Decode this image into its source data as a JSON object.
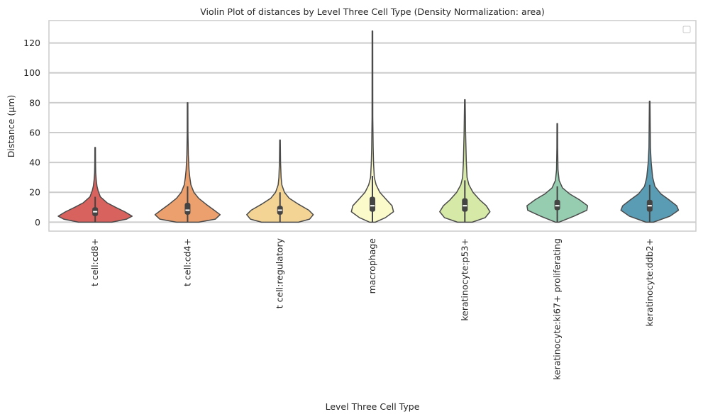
{
  "chart_data": {
    "type": "violin",
    "title": "Violin Plot of distances by Level Three Cell Type (Density Normalization: area)",
    "xlabel": "Level Three Cell Type",
    "ylabel": "Distance (µm)",
    "ylim": [
      -6,
      135
    ],
    "yticks": [
      0,
      20,
      40,
      60,
      80,
      100,
      120
    ],
    "grid": true,
    "legend": "top-right (empty)",
    "categories": [
      "t cell:cd8+",
      "t cell:cd4+",
      "t cell:regulatory",
      "macrophage",
      "keratinocyte:p53+",
      "keratinocyte:ki67+ proliferating",
      "keratinocyte:ddb2+"
    ],
    "colors": [
      "#d7625e",
      "#eca06e",
      "#f3d494",
      "#fafacb",
      "#d6e9a7",
      "#96cdb0",
      "#5b9cb5"
    ],
    "series": [
      {
        "name": "t cell:cd8+",
        "min": 0,
        "q1": 4,
        "median": 7,
        "q3": 10,
        "whisker_high": 17,
        "max": 50,
        "density": [
          [
            0,
            0.45
          ],
          [
            2,
            0.85
          ],
          [
            4,
            1.0
          ],
          [
            7,
            0.8
          ],
          [
            10,
            0.55
          ],
          [
            13,
            0.32
          ],
          [
            17,
            0.14
          ],
          [
            21,
            0.08
          ],
          [
            24,
            0.05
          ],
          [
            28,
            0.03
          ],
          [
            33,
            0.015
          ],
          [
            40,
            0.01
          ],
          [
            50,
            0.008
          ]
        ]
      },
      {
        "name": "t cell:cd4+",
        "min": 0,
        "q1": 5,
        "median": 8,
        "q3": 13,
        "whisker_high": 24,
        "max": 80,
        "density": [
          [
            0,
            0.3
          ],
          [
            2,
            0.75
          ],
          [
            5,
            0.88
          ],
          [
            8,
            0.72
          ],
          [
            12,
            0.5
          ],
          [
            16,
            0.3
          ],
          [
            20,
            0.17
          ],
          [
            25,
            0.09
          ],
          [
            30,
            0.06
          ],
          [
            35,
            0.04
          ],
          [
            45,
            0.02
          ],
          [
            60,
            0.01
          ],
          [
            80,
            0.008
          ]
        ]
      },
      {
        "name": "t cell:regulatory",
        "min": 0,
        "q1": 5,
        "median": 8,
        "q3": 11,
        "whisker_high": 20,
        "max": 55,
        "density": [
          [
            0,
            0.5
          ],
          [
            2,
            0.8
          ],
          [
            5,
            0.9
          ],
          [
            8,
            0.78
          ],
          [
            12,
            0.5
          ],
          [
            16,
            0.25
          ],
          [
            20,
            0.12
          ],
          [
            25,
            0.05
          ],
          [
            30,
            0.03
          ],
          [
            40,
            0.015
          ],
          [
            55,
            0.008
          ]
        ]
      },
      {
        "name": "macrophage",
        "min": 0,
        "q1": 7,
        "median": 11,
        "q3": 17,
        "whisker_high": 31,
        "max": 128,
        "density": [
          [
            0,
            0.08
          ],
          [
            3,
            0.35
          ],
          [
            7,
            0.57
          ],
          [
            11,
            0.53
          ],
          [
            15,
            0.38
          ],
          [
            20,
            0.2
          ],
          [
            25,
            0.1
          ],
          [
            30,
            0.05
          ],
          [
            40,
            0.03
          ],
          [
            50,
            0.02
          ],
          [
            70,
            0.01
          ],
          [
            128,
            0.008
          ]
        ]
      },
      {
        "name": "keratinocyte:p53+",
        "min": 0,
        "q1": 7,
        "median": 11,
        "q3": 16,
        "whisker_high": 28,
        "max": 82,
        "density": [
          [
            0,
            0.2
          ],
          [
            3,
            0.55
          ],
          [
            7,
            0.68
          ],
          [
            11,
            0.58
          ],
          [
            15,
            0.4
          ],
          [
            20,
            0.22
          ],
          [
            25,
            0.11
          ],
          [
            30,
            0.06
          ],
          [
            40,
            0.04
          ],
          [
            50,
            0.03
          ],
          [
            60,
            0.02
          ],
          [
            82,
            0.008
          ]
        ]
      },
      {
        "name": "keratinocyte:ki67+ proliferating",
        "min": 0,
        "q1": 8,
        "median": 11,
        "q3": 15,
        "whisker_high": 24,
        "max": 66,
        "density": [
          [
            0,
            0.05
          ],
          [
            4,
            0.45
          ],
          [
            8,
            0.8
          ],
          [
            11,
            0.82
          ],
          [
            15,
            0.6
          ],
          [
            19,
            0.33
          ],
          [
            23,
            0.14
          ],
          [
            28,
            0.05
          ],
          [
            35,
            0.02
          ],
          [
            50,
            0.01
          ],
          [
            66,
            0.008
          ]
        ]
      },
      {
        "name": "keratinocyte:ddb2+",
        "min": 0,
        "q1": 7,
        "median": 11,
        "q3": 15,
        "whisker_high": 25,
        "max": 81,
        "density": [
          [
            0,
            0.1
          ],
          [
            4,
            0.55
          ],
          [
            8,
            0.78
          ],
          [
            11,
            0.73
          ],
          [
            15,
            0.52
          ],
          [
            19,
            0.3
          ],
          [
            24,
            0.14
          ],
          [
            30,
            0.08
          ],
          [
            40,
            0.04
          ],
          [
            50,
            0.02
          ],
          [
            81,
            0.008
          ]
        ]
      }
    ]
  }
}
